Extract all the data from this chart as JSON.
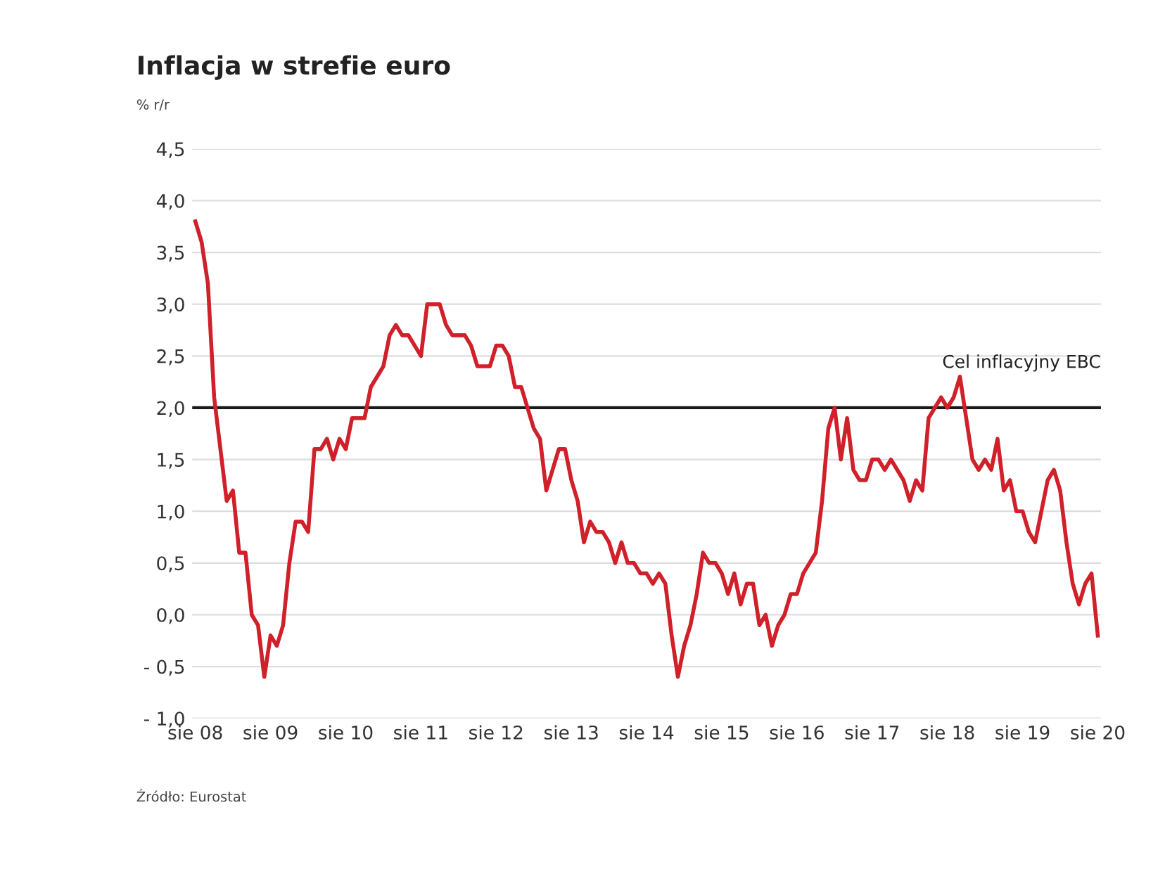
{
  "chart_data": {
    "type": "line",
    "title": "Inflacja w strefie euro",
    "ylabel": "% r/r",
    "annotations": [
      "Źródło: Eurostat"
    ],
    "categories": [
      "sie 08",
      null,
      null,
      null,
      null,
      null,
      null,
      null,
      null,
      null,
      null,
      null,
      "sie 09",
      null,
      null,
      null,
      null,
      null,
      null,
      null,
      null,
      null,
      null,
      null,
      "sie 10",
      null,
      null,
      null,
      null,
      null,
      null,
      null,
      null,
      null,
      null,
      null,
      "sie 11",
      null,
      null,
      null,
      null,
      null,
      null,
      null,
      null,
      null,
      null,
      null,
      "sie 12",
      null,
      null,
      null,
      null,
      null,
      null,
      null,
      null,
      null,
      null,
      null,
      "sie 13",
      null,
      null,
      null,
      null,
      null,
      null,
      null,
      null,
      null,
      null,
      null,
      "sie 14",
      null,
      null,
      null,
      null,
      null,
      null,
      null,
      null,
      null,
      null,
      null,
      "sie 15",
      null,
      null,
      null,
      null,
      null,
      null,
      null,
      null,
      null,
      null,
      null,
      "sie 16",
      null,
      null,
      null,
      null,
      null,
      null,
      null,
      null,
      null,
      null,
      null,
      "sie 17",
      null,
      null,
      null,
      null,
      null,
      null,
      null,
      null,
      null,
      null,
      null,
      "sie 18",
      null,
      null,
      null,
      null,
      null,
      null,
      null,
      null,
      null,
      null,
      null,
      "sie 19",
      null,
      null,
      null,
      null,
      null,
      null,
      null,
      null,
      null,
      null,
      null,
      "sie 20"
    ],
    "series": [
      {
        "color": "#d0202a",
        "values": [
          3.8,
          3.6,
          3.2,
          2.1,
          1.6,
          1.1,
          1.2,
          0.6,
          0.6,
          0.0,
          -0.1,
          -0.6,
          -0.2,
          -0.3,
          -0.1,
          0.5,
          0.9,
          0.9,
          0.8,
          1.6,
          1.6,
          1.7,
          1.5,
          1.7,
          1.6,
          1.9,
          1.9,
          1.9,
          2.2,
          2.3,
          2.4,
          2.7,
          2.8,
          2.7,
          2.7,
          2.6,
          2.5,
          3.0,
          3.0,
          3.0,
          2.8,
          2.7,
          2.7,
          2.7,
          2.6,
          2.4,
          2.4,
          2.4,
          2.6,
          2.6,
          2.5,
          2.2,
          2.2,
          2.0,
          1.8,
          1.7,
          1.2,
          1.4,
          1.6,
          1.6,
          1.3,
          1.1,
          0.7,
          0.9,
          0.8,
          0.8,
          0.7,
          0.5,
          0.7,
          0.5,
          0.5,
          0.4,
          0.4,
          0.3,
          0.4,
          0.3,
          -0.2,
          -0.6,
          -0.3,
          -0.1,
          0.2,
          0.6,
          0.5,
          0.5,
          0.4,
          0.2,
          0.4,
          0.1,
          0.3,
          0.3,
          -0.1,
          0.0,
          -0.3,
          -0.1,
          0.0,
          0.2,
          0.2,
          0.4,
          0.5,
          0.6,
          1.1,
          1.8,
          2.0,
          1.5,
          1.9,
          1.4,
          1.3,
          1.3,
          1.5,
          1.5,
          1.4,
          1.5,
          1.4,
          1.3,
          1.1,
          1.3,
          1.2,
          1.9,
          2.0,
          2.1,
          2.0,
          2.1,
          2.3,
          1.9,
          1.5,
          1.4,
          1.5,
          1.4,
          1.7,
          1.2,
          1.3,
          1.0,
          1.0,
          0.8,
          0.7,
          1.0,
          1.3,
          1.4,
          1.2,
          0.7,
          0.3,
          0.1,
          0.3,
          0.4,
          -0.2
        ]
      }
    ],
    "ylim": [
      -1.0,
      4.5
    ],
    "yticks": [
      {
        "value": -1.0,
        "label": "- 1,0"
      },
      {
        "value": -0.5,
        "label": "- 0,5"
      },
      {
        "value": 0.0,
        "label": "0,0"
      },
      {
        "value": 0.5,
        "label": "0,5"
      },
      {
        "value": 1.0,
        "label": "1,0"
      },
      {
        "value": 1.5,
        "label": "1,5"
      },
      {
        "value": 2.0,
        "label": "2,0"
      },
      {
        "value": 2.5,
        "label": "2,5"
      },
      {
        "value": 3.0,
        "label": "3,0"
      },
      {
        "value": 3.5,
        "label": "3,5"
      },
      {
        "value": 4.0,
        "label": "4,0"
      },
      {
        "value": 4.5,
        "label": "4,5"
      }
    ],
    "ref_lines": [
      {
        "axis": "y",
        "value": 2.0,
        "label": "Cel inflacyjny EBC",
        "color": "#1a1a1a"
      }
    ],
    "grid": "y",
    "legend": false,
    "marker": "none",
    "line_style": "solid"
  }
}
